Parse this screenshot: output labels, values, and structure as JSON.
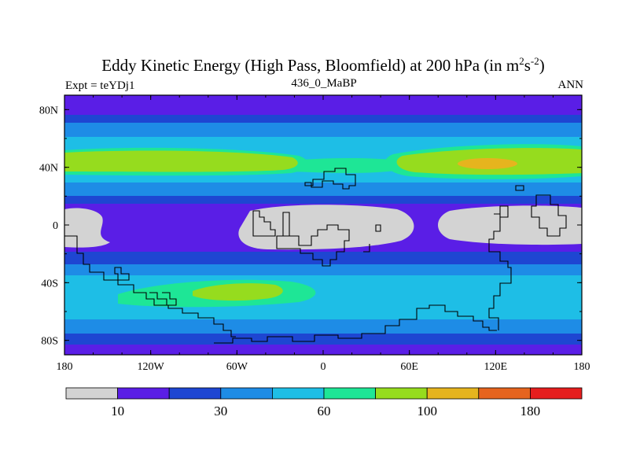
{
  "header": {
    "title": "Eddy Kinetic Energy (High Pass, Bloomfield) at 200 hPa (in m",
    "title_sup1": "2",
    "title_mid": "s",
    "title_sup2": "-2",
    "title_end": ")",
    "left_label": "Expt = teYDj1",
    "center_label": "436_0_MaBP",
    "right_label": "ANN"
  },
  "map": {
    "x_ticks": [
      "180",
      "120W",
      "60W",
      "0",
      "60E",
      "120E",
      "180"
    ],
    "y_ticks": [
      "80N",
      "40N",
      "0",
      "40S",
      "80S"
    ],
    "x_tick_lon": [
      -180,
      -120,
      -60,
      0,
      60,
      120,
      180
    ],
    "y_tick_lat": [
      80,
      40,
      0,
      -40,
      -80
    ]
  },
  "colorbar": {
    "colors": [
      "#d3d3d3",
      "#5a1ee6",
      "#1e46d2",
      "#1e8ce6",
      "#1ebee6",
      "#1ee696",
      "#96dc1e",
      "#e6b41e",
      "#e6641e",
      "#e61e1e"
    ],
    "labels": [
      {
        "text": "10",
        "boundary": 1
      },
      {
        "text": "30",
        "boundary": 3
      },
      {
        "text": "60",
        "boundary": 5
      },
      {
        "text": "100",
        "boundary": 7
      },
      {
        "text": "180",
        "boundary": 9
      }
    ]
  }
}
